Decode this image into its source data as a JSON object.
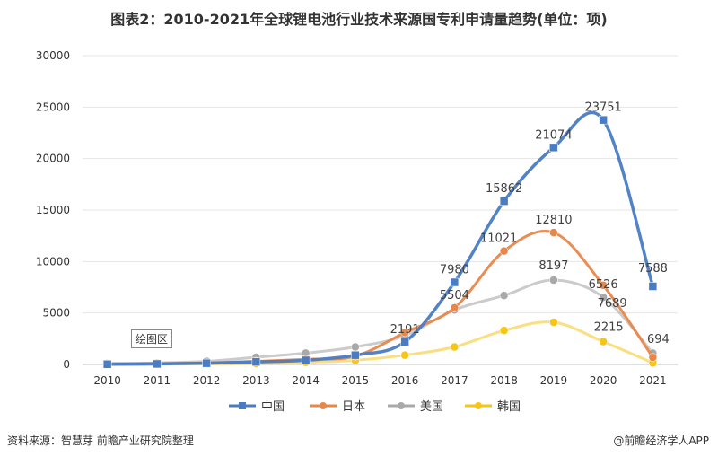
{
  "header": {
    "title": "图表2：2010-2021年全球锂电池行业技术来源国专利申请量趋势(单位：项)"
  },
  "footer": {
    "source": "资料来源：智慧芽 前瞻产业研究院整理",
    "brand": "@前瞻经济学人APP"
  },
  "plot_area_label": "绘图区",
  "chart_data": {
    "type": "line",
    "title": "图表2：2010-2021年全球锂电池行业技术来源国专利申请量趋势(单位：项)",
    "x": [
      "2010",
      "2011",
      "2012",
      "2013",
      "2014",
      "2015",
      "2016",
      "2017",
      "2018",
      "2019",
      "2020",
      "2021"
    ],
    "ylim": [
      0,
      30000
    ],
    "yticks": [
      0,
      5000,
      10000,
      15000,
      20000,
      25000,
      30000
    ],
    "ytick_labels": [
      "0",
      "5000",
      "10000",
      "15000",
      "20000",
      "25000",
      "30000"
    ],
    "legend_position": "bottom",
    "series": [
      {
        "name": "中国",
        "color": "#4a7cc4",
        "marker": "square",
        "values": [
          20,
          50,
          120,
          250,
          400,
          900,
          2191,
          7980,
          15862,
          21074,
          23751,
          7588
        ],
        "labels": {
          "6": "2191",
          "7": "7980",
          "8": "15862",
          "9": "21074",
          "10": "23751",
          "11": "7588"
        }
      },
      {
        "name": "日本",
        "color": "#e8874a",
        "marker": "circle",
        "values": [
          60,
          100,
          150,
          300,
          500,
          800,
          3100,
          5504,
          11021,
          12810,
          7689,
          694
        ],
        "labels": {
          "7": "5504",
          "8": "11021",
          "9": "12810",
          "10": "7689",
          "11": "694"
        }
      },
      {
        "name": "美国",
        "color": "#a9a9a9",
        "marker": "circle",
        "values": [
          100,
          150,
          300,
          700,
          1100,
          1700,
          2800,
          5300,
          6700,
          8197,
          6526,
          1100
        ],
        "labels": {
          "9": "8197",
          "10": "6526"
        }
      },
      {
        "name": "韩国",
        "color": "#f5c518",
        "marker": "circle",
        "values": [
          10,
          20,
          50,
          100,
          200,
          400,
          900,
          1700,
          3300,
          4100,
          2215,
          150
        ],
        "labels": {
          "10": "2215"
        }
      }
    ]
  }
}
